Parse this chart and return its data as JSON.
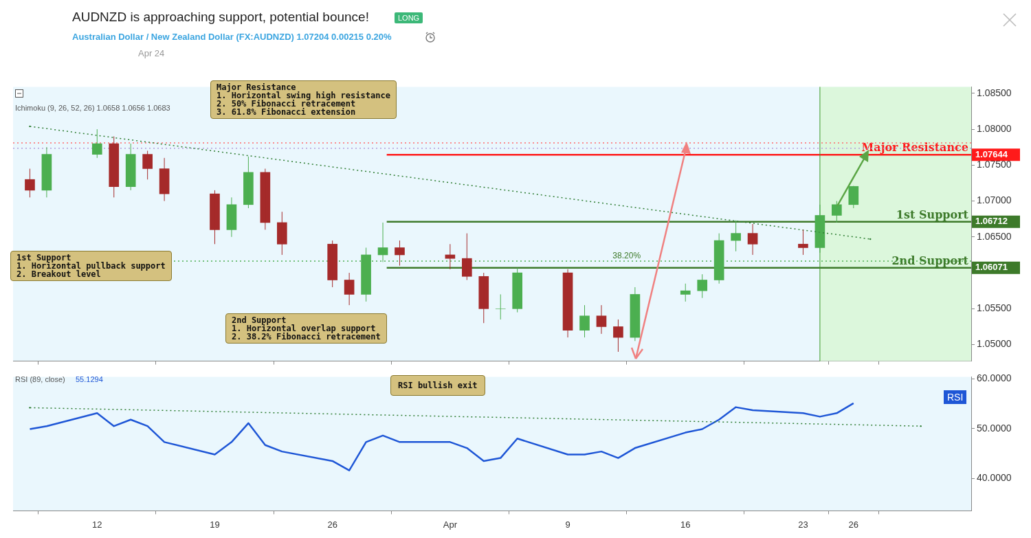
{
  "chart_data": [
    {
      "type": "candlestick",
      "title": "AUDNZD is approaching support, potential bounce!",
      "subtitle": "Australian Dollar / New Zealand Dollar (FX:AUDNZD) 1.07204 0.00215 0.20%",
      "x": [
        "--03-08",
        "--03-09",
        "--03-12",
        "--03-13",
        "--03-14",
        "--03-15",
        "--03-16",
        "--03-19",
        "--03-20",
        "--03-21",
        "--03-22",
        "--03-23",
        "--03-26",
        "--03-27",
        "--03-28",
        "--03-29",
        "--03-30",
        "--04-02",
        "--04-03",
        "--04-04",
        "--04-05",
        "--04-06",
        "--04-09",
        "--04-10",
        "--04-11",
        "--04-12",
        "--04-13",
        "--04-16",
        "--04-17",
        "--04-18",
        "--04-19",
        "--04-20",
        "--04-23",
        "--04-24",
        "--04-25",
        "--04-26"
      ],
      "ohlc": [
        [
          1.073,
          1.0745,
          1.0705,
          1.0715
        ],
        [
          1.0715,
          1.0775,
          1.0705,
          1.0765
        ],
        [
          1.0765,
          1.08,
          1.076,
          1.078
        ],
        [
          1.078,
          1.079,
          1.0705,
          1.072
        ],
        [
          1.072,
          1.078,
          1.0715,
          1.0765
        ],
        [
          1.0765,
          1.077,
          1.073,
          1.0745
        ],
        [
          1.0745,
          1.076,
          1.07,
          1.071
        ],
        [
          1.071,
          1.0715,
          1.064,
          1.066
        ],
        [
          1.066,
          1.0705,
          1.065,
          1.0695
        ],
        [
          1.0695,
          1.0762,
          1.069,
          1.074
        ],
        [
          1.074,
          1.0745,
          1.066,
          1.067
        ],
        [
          1.067,
          1.0685,
          1.0625,
          1.064
        ],
        [
          1.064,
          1.0645,
          1.058,
          1.059
        ],
        [
          1.059,
          1.06,
          1.0555,
          1.057
        ],
        [
          1.057,
          1.0635,
          1.056,
          1.0625
        ],
        [
          1.0625,
          1.067,
          1.0615,
          1.0635
        ],
        [
          1.0635,
          1.0645,
          1.061,
          1.0625
        ],
        [
          1.0625,
          1.064,
          1.0605,
          1.062
        ],
        [
          1.062,
          1.0655,
          1.059,
          1.0595
        ],
        [
          1.0595,
          1.06,
          1.053,
          1.055
        ],
        [
          1.055,
          1.057,
          1.0535,
          1.055
        ],
        [
          1.055,
          1.0607,
          1.0545,
          1.06
        ],
        [
          1.06,
          1.0605,
          1.051,
          1.052
        ],
        [
          1.052,
          1.0555,
          1.051,
          1.054
        ],
        [
          1.054,
          1.0555,
          1.0515,
          1.0525
        ],
        [
          1.0525,
          1.0535,
          1.049,
          1.051
        ],
        [
          1.051,
          1.058,
          1.0505,
          1.057
        ],
        [
          1.057,
          1.0585,
          1.056,
          1.0575
        ],
        [
          1.0575,
          1.0598,
          1.0565,
          1.059
        ],
        [
          1.059,
          1.0655,
          1.0585,
          1.0645
        ],
        [
          1.0645,
          1.0673,
          1.063,
          1.0655
        ],
        [
          1.0655,
          1.0668,
          1.0625,
          1.064
        ],
        [
          1.064,
          1.066,
          1.0625,
          1.0635
        ],
        [
          1.0635,
          1.0695,
          1.0628,
          1.068
        ],
        [
          1.068,
          1.07,
          1.067,
          1.0695
        ],
        [
          1.0695,
          1.0721,
          1.069,
          1.07204
        ]
      ],
      "series": [
        {
          "type": "line",
          "x": [
            "--03-08",
            "--04-27"
          ],
          "values": [
            1.0804,
            1.0647
          ],
          "color": "#2e7d32",
          "line_style": "dotted"
        }
      ],
      "xlim": [
        "--03-07",
        "--05-03"
      ],
      "xticks": [
        {
          "value": "--03-12",
          "label": "12"
        },
        {
          "value": "--03-19",
          "label": "19"
        },
        {
          "value": "--03-26",
          "label": "26"
        },
        {
          "value": "--04-02",
          "label": "Apr"
        },
        {
          "value": "--04-09",
          "label": "9"
        },
        {
          "value": "--04-16",
          "label": "16"
        },
        {
          "value": "--04-23",
          "label": "23"
        },
        {
          "value": "--04-26",
          "label": "26"
        }
      ],
      "ylim": [
        1.0477,
        1.0859
      ],
      "yticks": [
        {
          "value": 1.05,
          "label": "1.05000"
        },
        {
          "value": 1.055,
          "label": "1.05500"
        },
        {
          "value": 1.06,
          "label": null
        },
        {
          "value": 1.065,
          "label": "1.06500"
        },
        {
          "value": 1.07,
          "label": "1.07000"
        },
        {
          "value": 1.075,
          "label": "1.07500"
        },
        {
          "value": 1.08,
          "label": "1.08000"
        },
        {
          "value": 1.085,
          "label": "1.08500"
        }
      ],
      "tick_labels": "y",
      "ref_lines": [
        {
          "axis": "y",
          "value": 1.07644,
          "label": "Major Resistance",
          "color": "#ff1a1a",
          "line_style": "solid"
        },
        {
          "axis": "y",
          "value": 1.06712,
          "label": "1st Support",
          "color": "#3d7a2a",
          "line_style": "solid"
        },
        {
          "axis": "y",
          "value": 1.06071,
          "label": "2nd Support",
          "color": "#3d7a2a",
          "line_style": "solid"
        },
        {
          "axis": "y",
          "value": 1.0781,
          "color": "#ff6b6b",
          "line_style": "dotted"
        },
        {
          "axis": "y",
          "value": 1.07736,
          "color": "#b39ddb",
          "line_style": "dotted"
        },
        {
          "axis": "y",
          "value": 1.06164,
          "color": "#4caf50",
          "line_style": "dotted"
        },
        {
          "axis": "x",
          "value": "--04-24",
          "color": "#3d9a2a",
          "line_style": "solid"
        }
      ],
      "bands": [
        {
          "axis": "x",
          "from": "--04-24",
          "to": "--05-03",
          "color": "#dcf7dc"
        }
      ],
      "annotations": [
        "LONG",
        "Apr 24",
        "Ichimoku (9, 26, 52, 26) 1.0658 1.0656 1.0683",
        "Major Resistance\n1. Horizontal swing high resistance\n2. 50% Fibonacci retracement\n3. 61.8% Fibonacci extension",
        "1st Support\n1. Horizontal pullback support\n2. Breakout level",
        "2nd Support\n1. Horizontal overlap support\n2. 38.2% Fibonacci retracement",
        "38.20%",
        "1.07644",
        "1.06712",
        "1.06071"
      ]
    },
    {
      "type": "line",
      "title": "RSI (89, close)",
      "x": [
        "--03-08",
        "--03-09",
        "--03-12",
        "--03-13",
        "--03-14",
        "--03-15",
        "--03-16",
        "--03-19",
        "--03-20",
        "--03-21",
        "--03-22",
        "--03-23",
        "--03-26",
        "--03-27",
        "--03-28",
        "--03-29",
        "--03-30",
        "--04-02",
        "--04-03",
        "--04-04",
        "--04-05",
        "--04-06",
        "--04-09",
        "--04-10",
        "--04-11",
        "--04-12",
        "--04-13",
        "--04-16",
        "--04-17",
        "--04-18",
        "--04-19",
        "--04-20",
        "--04-23",
        "--04-24",
        "--04-25",
        "--04-26"
      ],
      "values": [
        49.9,
        50.5,
        53.1,
        50.5,
        51.8,
        50.5,
        47.3,
        44.8,
        47.3,
        51.1,
        46.7,
        45.4,
        43.5,
        41.6,
        47.3,
        48.6,
        47.3,
        47.3,
        46.1,
        43.5,
        44.1,
        48.0,
        44.8,
        44.8,
        45.4,
        44.1,
        46.1,
        49.2,
        49.9,
        51.8,
        54.3,
        53.7,
        53.1,
        52.4,
        53.1,
        55.1
      ],
      "color": "#1e56d6",
      "series": [
        {
          "type": "line",
          "x": [
            "--03-08",
            "--04-30"
          ],
          "values": [
            54.2,
            50.5
          ],
          "color": "#2e7d32",
          "line_style": "dotted"
        }
      ],
      "xlim": [
        "--03-07",
        "--05-03"
      ],
      "xticks": [
        {
          "value": "--03-12",
          "label": "12"
        },
        {
          "value": "--03-19",
          "label": "19"
        },
        {
          "value": "--03-26",
          "label": "26"
        },
        {
          "value": "--04-02",
          "label": "Apr"
        },
        {
          "value": "--04-09",
          "label": "9"
        },
        {
          "value": "--04-16",
          "label": "16"
        },
        {
          "value": "--04-23",
          "label": "23"
        },
        {
          "value": "--04-26",
          "label": "26"
        }
      ],
      "ylim": [
        33.5,
        60.4
      ],
      "yticks": [
        {
          "value": 40,
          "label": "40.0000"
        },
        {
          "value": 50,
          "label": "50.0000"
        },
        {
          "value": 60,
          "label": "60.0000"
        }
      ],
      "annotations": [
        "55.1294",
        "RSI bullish exit",
        "RSI"
      ]
    }
  ]
}
